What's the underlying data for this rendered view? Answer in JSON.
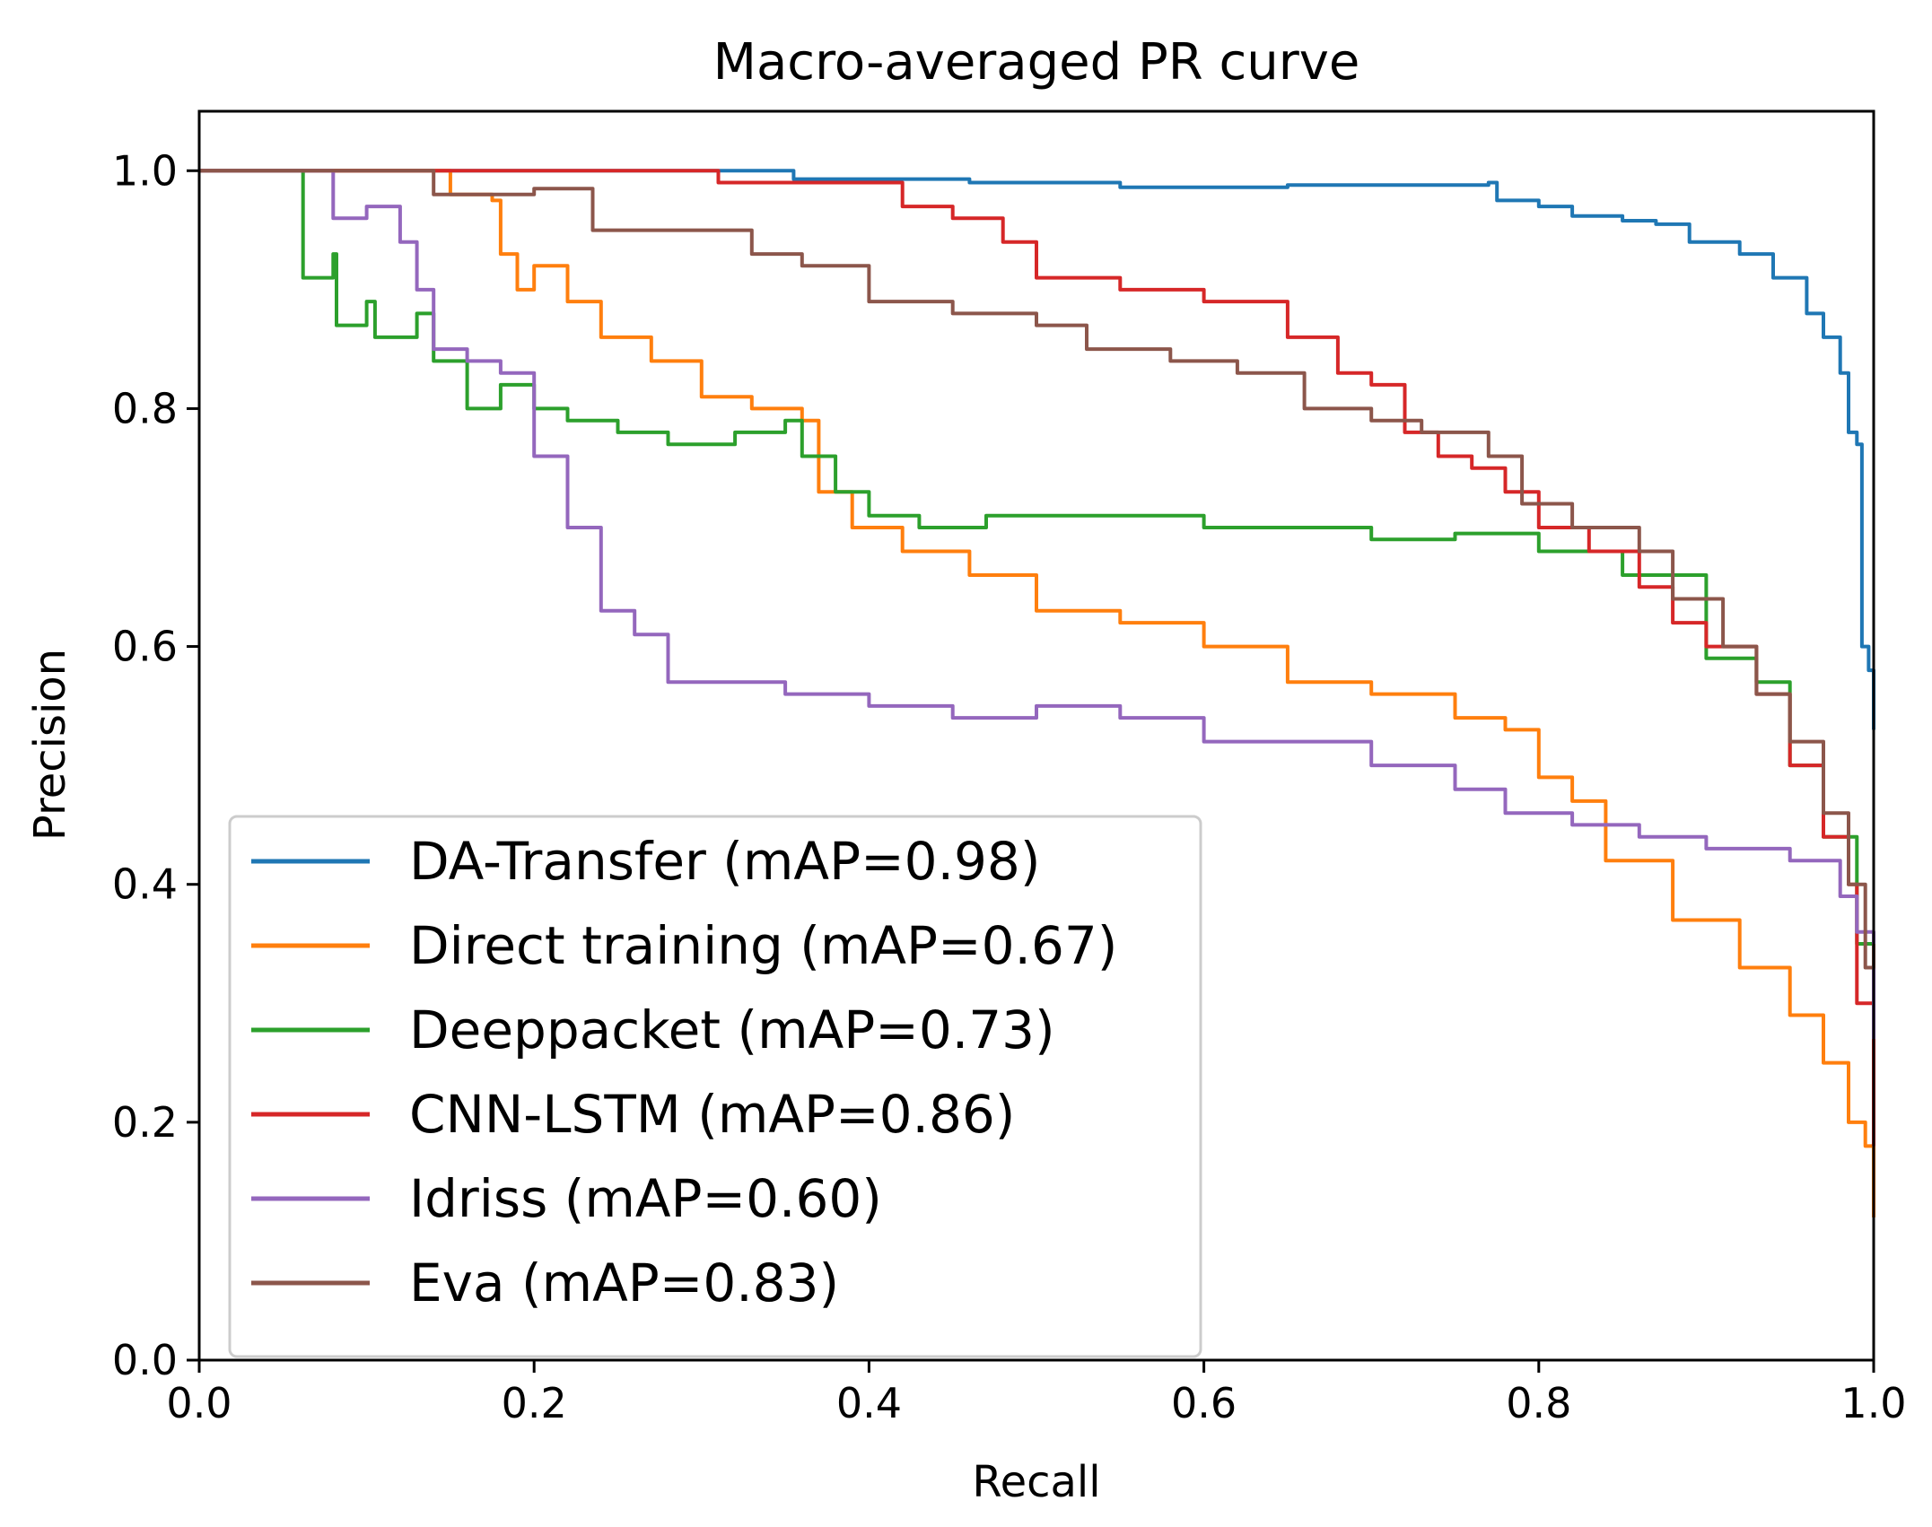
{
  "chart_data": {
    "type": "line",
    "title": "Macro-averaged PR curve",
    "xlabel": "Recall",
    "ylabel": "Precision",
    "xlim": [
      0.0,
      1.0
    ],
    "ylim": [
      0.0,
      1.05
    ],
    "xticks": [
      "0.0",
      "0.2",
      "0.4",
      "0.6",
      "0.8",
      "1.0"
    ],
    "yticks": [
      "0.0",
      "0.2",
      "0.4",
      "0.6",
      "0.8",
      "1.0"
    ],
    "grid": false,
    "legend_position": "lower-left",
    "series": [
      {
        "name": "DA-Transfer (mAP=0.98)",
        "color": "#1f77b4",
        "points": [
          [
            0,
            1
          ],
          [
            0.35,
            1
          ],
          [
            0.355,
            0.993
          ],
          [
            0.46,
            0.99
          ],
          [
            0.55,
            0.986
          ],
          [
            0.65,
            0.988
          ],
          [
            0.77,
            0.99
          ],
          [
            0.775,
            0.975
          ],
          [
            0.8,
            0.97
          ],
          [
            0.82,
            0.962
          ],
          [
            0.85,
            0.958
          ],
          [
            0.87,
            0.955
          ],
          [
            0.89,
            0.94
          ],
          [
            0.92,
            0.93
          ],
          [
            0.94,
            0.91
          ],
          [
            0.96,
            0.88
          ],
          [
            0.97,
            0.86
          ],
          [
            0.98,
            0.83
          ],
          [
            0.985,
            0.78
          ],
          [
            0.99,
            0.77
          ],
          [
            0.993,
            0.6
          ],
          [
            0.997,
            0.58
          ],
          [
            1.0,
            0.53
          ]
        ]
      },
      {
        "name": "Direct training (mAP=0.67)",
        "color": "#ff7f0e",
        "points": [
          [
            0,
            1
          ],
          [
            0.145,
            1
          ],
          [
            0.15,
            0.98
          ],
          [
            0.175,
            0.975
          ],
          [
            0.18,
            0.93
          ],
          [
            0.19,
            0.9
          ],
          [
            0.2,
            0.92
          ],
          [
            0.22,
            0.89
          ],
          [
            0.24,
            0.86
          ],
          [
            0.27,
            0.84
          ],
          [
            0.3,
            0.81
          ],
          [
            0.33,
            0.8
          ],
          [
            0.36,
            0.79
          ],
          [
            0.37,
            0.73
          ],
          [
            0.39,
            0.7
          ],
          [
            0.42,
            0.68
          ],
          [
            0.46,
            0.66
          ],
          [
            0.5,
            0.63
          ],
          [
            0.55,
            0.62
          ],
          [
            0.6,
            0.6
          ],
          [
            0.65,
            0.57
          ],
          [
            0.7,
            0.56
          ],
          [
            0.75,
            0.54
          ],
          [
            0.78,
            0.53
          ],
          [
            0.8,
            0.49
          ],
          [
            0.82,
            0.47
          ],
          [
            0.84,
            0.42
          ],
          [
            0.88,
            0.37
          ],
          [
            0.92,
            0.33
          ],
          [
            0.95,
            0.29
          ],
          [
            0.97,
            0.25
          ],
          [
            0.985,
            0.2
          ],
          [
            0.995,
            0.18
          ],
          [
            1.0,
            0.12
          ]
        ]
      },
      {
        "name": "Deeppacket (mAP=0.73)",
        "color": "#2ca02c",
        "points": [
          [
            0,
            1
          ],
          [
            0.06,
            1
          ],
          [
            0.062,
            0.91
          ],
          [
            0.08,
            0.93
          ],
          [
            0.082,
            0.87
          ],
          [
            0.1,
            0.89
          ],
          [
            0.105,
            0.86
          ],
          [
            0.13,
            0.88
          ],
          [
            0.14,
            0.84
          ],
          [
            0.16,
            0.8
          ],
          [
            0.18,
            0.82
          ],
          [
            0.2,
            0.8
          ],
          [
            0.22,
            0.79
          ],
          [
            0.25,
            0.78
          ],
          [
            0.28,
            0.77
          ],
          [
            0.3,
            0.77
          ],
          [
            0.32,
            0.78
          ],
          [
            0.35,
            0.79
          ],
          [
            0.36,
            0.76
          ],
          [
            0.38,
            0.73
          ],
          [
            0.4,
            0.71
          ],
          [
            0.43,
            0.7
          ],
          [
            0.47,
            0.71
          ],
          [
            0.5,
            0.71
          ],
          [
            0.55,
            0.71
          ],
          [
            0.6,
            0.7
          ],
          [
            0.65,
            0.7
          ],
          [
            0.7,
            0.69
          ],
          [
            0.75,
            0.695
          ],
          [
            0.8,
            0.68
          ],
          [
            0.85,
            0.66
          ],
          [
            0.9,
            0.59
          ],
          [
            0.93,
            0.57
          ],
          [
            0.95,
            0.5
          ],
          [
            0.97,
            0.44
          ],
          [
            0.99,
            0.35
          ],
          [
            1.0,
            0.22
          ]
        ]
      },
      {
        "name": "CNN-LSTM (mAP=0.86)",
        "color": "#d62728",
        "points": [
          [
            0,
            1
          ],
          [
            0.3,
            1
          ],
          [
            0.31,
            0.99
          ],
          [
            0.38,
            0.99
          ],
          [
            0.42,
            0.97
          ],
          [
            0.45,
            0.96
          ],
          [
            0.48,
            0.94
          ],
          [
            0.5,
            0.91
          ],
          [
            0.55,
            0.9
          ],
          [
            0.6,
            0.89
          ],
          [
            0.65,
            0.86
          ],
          [
            0.68,
            0.83
          ],
          [
            0.7,
            0.82
          ],
          [
            0.72,
            0.78
          ],
          [
            0.74,
            0.76
          ],
          [
            0.76,
            0.75
          ],
          [
            0.78,
            0.73
          ],
          [
            0.8,
            0.7
          ],
          [
            0.83,
            0.68
          ],
          [
            0.86,
            0.65
          ],
          [
            0.88,
            0.62
          ],
          [
            0.9,
            0.6
          ],
          [
            0.93,
            0.56
          ],
          [
            0.95,
            0.5
          ],
          [
            0.97,
            0.44
          ],
          [
            0.985,
            0.4
          ],
          [
            0.99,
            0.3
          ],
          [
            1.0,
            0.18
          ]
        ]
      },
      {
        "name": "Idriss (mAP=0.60)",
        "color": "#9467bd",
        "points": [
          [
            0,
            1
          ],
          [
            0.075,
            1
          ],
          [
            0.08,
            0.96
          ],
          [
            0.1,
            0.97
          ],
          [
            0.115,
            0.97
          ],
          [
            0.12,
            0.94
          ],
          [
            0.13,
            0.9
          ],
          [
            0.14,
            0.85
          ],
          [
            0.16,
            0.84
          ],
          [
            0.18,
            0.83
          ],
          [
            0.2,
            0.76
          ],
          [
            0.22,
            0.7
          ],
          [
            0.24,
            0.63
          ],
          [
            0.26,
            0.61
          ],
          [
            0.28,
            0.57
          ],
          [
            0.31,
            0.57
          ],
          [
            0.35,
            0.56
          ],
          [
            0.4,
            0.55
          ],
          [
            0.45,
            0.54
          ],
          [
            0.5,
            0.55
          ],
          [
            0.55,
            0.54
          ],
          [
            0.6,
            0.52
          ],
          [
            0.65,
            0.52
          ],
          [
            0.7,
            0.5
          ],
          [
            0.75,
            0.48
          ],
          [
            0.78,
            0.46
          ],
          [
            0.82,
            0.45
          ],
          [
            0.86,
            0.44
          ],
          [
            0.9,
            0.43
          ],
          [
            0.95,
            0.42
          ],
          [
            0.98,
            0.39
          ],
          [
            0.99,
            0.36
          ],
          [
            1.0,
            0.27
          ]
        ]
      },
      {
        "name": "Eva (mAP=0.83)",
        "color": "#8c564b",
        "points": [
          [
            0,
            1
          ],
          [
            0.135,
            1
          ],
          [
            0.14,
            0.98
          ],
          [
            0.2,
            0.985
          ],
          [
            0.23,
            0.985
          ],
          [
            0.235,
            0.95
          ],
          [
            0.26,
            0.95
          ],
          [
            0.3,
            0.95
          ],
          [
            0.33,
            0.93
          ],
          [
            0.36,
            0.92
          ],
          [
            0.4,
            0.89
          ],
          [
            0.45,
            0.88
          ],
          [
            0.5,
            0.87
          ],
          [
            0.53,
            0.85
          ],
          [
            0.58,
            0.84
          ],
          [
            0.62,
            0.83
          ],
          [
            0.66,
            0.8
          ],
          [
            0.7,
            0.79
          ],
          [
            0.73,
            0.78
          ],
          [
            0.77,
            0.76
          ],
          [
            0.79,
            0.72
          ],
          [
            0.82,
            0.7
          ],
          [
            0.86,
            0.68
          ],
          [
            0.88,
            0.64
          ],
          [
            0.91,
            0.6
          ],
          [
            0.93,
            0.56
          ],
          [
            0.95,
            0.52
          ],
          [
            0.97,
            0.46
          ],
          [
            0.985,
            0.4
          ],
          [
            0.995,
            0.33
          ],
          [
            1.0,
            0.35
          ]
        ]
      }
    ]
  }
}
